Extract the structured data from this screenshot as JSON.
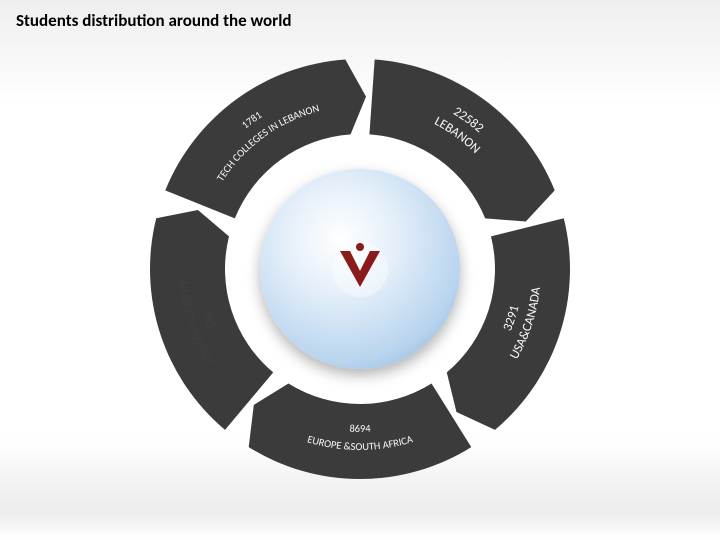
{
  "title": "Students distribution around the world",
  "title_fontsize": 17,
  "title_color": "#000000",
  "diagram": {
    "type": "circular-arrow",
    "segments": 5,
    "outer_radius": 210,
    "inner_radius": 135,
    "text_radius": 172,
    "ring_color": "#3b3b3b",
    "gap_color": "#ffffff",
    "background_color": "#ffffff",
    "labels": [
      {
        "line1": "LEBANON",
        "line2": "22582",
        "angle_deg": -54,
        "size": "normal",
        "tone": "light"
      },
      {
        "line1": "USA&CANADA",
        "line2": "3291",
        "angle_deg": 18,
        "size": "normal",
        "tone": "light"
      },
      {
        "line1": "EUROPE &SOUTH AFRICA",
        "line2": "8694",
        "angle_deg": 90,
        "size": "small",
        "tone": "light"
      },
      {
        "line1": "ARAB COUNTRIES",
        "line2": "263",
        "angle_deg": 162,
        "size": "normal",
        "tone": "dark"
      },
      {
        "line1": "TECH COLLEGES IN LEBANON",
        "line2": "1781",
        "angle_deg": 234,
        "size": "small",
        "tone": "light"
      }
    ],
    "center_icon": "v-emblem",
    "center_icon_color": "#8b1a1a",
    "globe_highlight_color": "#ffffff",
    "globe_mid_color": "#b8d4ee",
    "globe_edge_color": "#7fa8d0"
  }
}
